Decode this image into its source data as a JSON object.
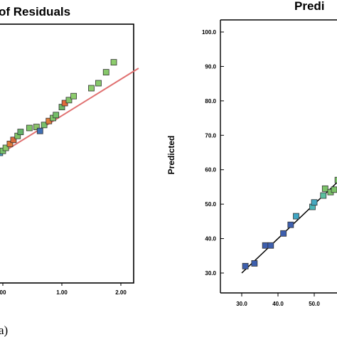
{
  "chart_data": [
    {
      "type": "scatter",
      "title": "of Residuals",
      "caption": "a)",
      "x_ticks": [
        "00",
        "1.00",
        "2.00"
      ],
      "xlim": [
        0.0,
        2.2
      ],
      "points_note": "Normal probability plot of residuals (partially visible, cropped at left)",
      "series": [
        {
          "values": [
            {
              "x": -0.05,
              "y": 0.05,
              "c": "#4aa3c8"
            },
            {
              "x": 0.0,
              "y": 0.07,
              "c": "#77c36b"
            },
            {
              "x": 0.05,
              "y": 0.1,
              "c": "#8bc86a"
            },
            {
              "x": 0.12,
              "y": 0.14,
              "c": "#e07b39"
            },
            {
              "x": 0.18,
              "y": 0.18,
              "c": "#d86a3a"
            },
            {
              "x": 0.25,
              "y": 0.22,
              "c": "#7fc466"
            },
            {
              "x": 0.3,
              "y": 0.26,
              "c": "#66b36a"
            },
            {
              "x": 0.45,
              "y": 0.3,
              "c": "#7fc466"
            },
            {
              "x": 0.57,
              "y": 0.31,
              "c": "#8cc46a"
            },
            {
              "x": 0.63,
              "y": 0.27,
              "c": "#3f6fb5"
            },
            {
              "x": 0.7,
              "y": 0.33,
              "c": "#78c06a"
            },
            {
              "x": 0.78,
              "y": 0.37,
              "c": "#e07b39"
            },
            {
              "x": 0.85,
              "y": 0.4,
              "c": "#82c56a"
            },
            {
              "x": 0.9,
              "y": 0.43,
              "c": "#74bf68"
            },
            {
              "x": 1.0,
              "y": 0.51,
              "c": "#6db766"
            },
            {
              "x": 1.05,
              "y": 0.55,
              "c": "#e06a3a"
            },
            {
              "x": 1.12,
              "y": 0.58,
              "c": "#84c66a"
            },
            {
              "x": 1.2,
              "y": 0.62,
              "c": "#8ccc6c"
            },
            {
              "x": 1.5,
              "y": 0.7,
              "c": "#8ccc6c"
            },
            {
              "x": 1.62,
              "y": 0.75,
              "c": "#86c86a"
            },
            {
              "x": 1.75,
              "y": 0.86,
              "c": "#86c86a"
            },
            {
              "x": 1.88,
              "y": 0.96,
              "c": "#8ccc6c"
            }
          ]
        }
      ],
      "fit_line": {
        "x": [
          -0.1,
          2.3
        ],
        "y": [
          0.02,
          0.9
        ],
        "color": "#e07070"
      }
    },
    {
      "type": "scatter",
      "title": "Predi",
      "ylabel": "Predicted",
      "y_ticks": [
        "100.0",
        "90.0",
        "80.0",
        "70.0",
        "60.0",
        "50.0",
        "40.0",
        "30.0"
      ],
      "y_tick_values": [
        100,
        90,
        80,
        70,
        60,
        50,
        40,
        30
      ],
      "x_ticks": [
        "30.0",
        "40.0",
        "50.0"
      ],
      "x_tick_values": [
        30,
        40,
        50
      ],
      "ylim": [
        27,
        103
      ],
      "series": [
        {
          "values": [
            {
              "x": 31.0,
              "y": 32.0,
              "c": "#3d5fae"
            },
            {
              "x": 33.5,
              "y": 32.8,
              "c": "#3d5fae"
            },
            {
              "x": 36.5,
              "y": 38.0,
              "c": "#3d5fae"
            },
            {
              "x": 38.0,
              "y": 38.0,
              "c": "#3d5fae"
            },
            {
              "x": 41.5,
              "y": 41.5,
              "c": "#3d5fae"
            },
            {
              "x": 43.5,
              "y": 44.0,
              "c": "#3d5fae"
            },
            {
              "x": 45.0,
              "y": 46.5,
              "c": "#3fa6c4"
            },
            {
              "x": 49.5,
              "y": 49.2,
              "c": "#4db5b5"
            },
            {
              "x": 50.0,
              "y": 50.5,
              "c": "#45a8c0"
            },
            {
              "x": 52.5,
              "y": 52.5,
              "c": "#5bc0a0"
            },
            {
              "x": 53.0,
              "y": 54.5,
              "c": "#7cc36a"
            },
            {
              "x": 54.5,
              "y": 53.5,
              "c": "#7cc36a"
            },
            {
              "x": 55.5,
              "y": 54.2,
              "c": "#7cc36a"
            },
            {
              "x": 56.5,
              "y": 57.0,
              "c": "#7cc36a"
            }
          ]
        }
      ],
      "fit_line": {
        "x": [
          30.0,
          58.0
        ],
        "y": [
          30.0,
          58.0
        ],
        "color": "#000000"
      }
    }
  ]
}
